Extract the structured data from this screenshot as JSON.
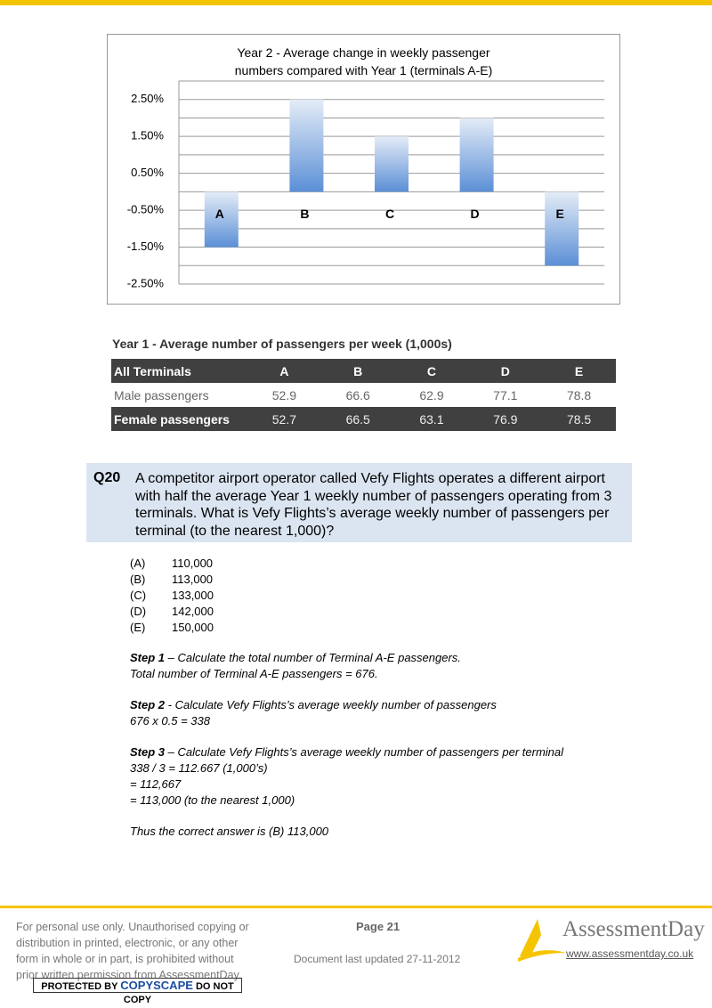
{
  "chart_data": {
    "type": "bar",
    "title": "Year 2 - Average change in weekly passenger numbers compared with Year 1 (terminals A-E)",
    "categories": [
      "A",
      "B",
      "C",
      "D",
      "E"
    ],
    "values": [
      -1.5,
      2.5,
      1.5,
      2.0,
      -2.0
    ],
    "color": "#5b8fd6",
    "ylim": [
      -2.5,
      3.0
    ],
    "yticks": [
      {
        "value": -2.5,
        "label": "-2.50%"
      },
      {
        "value": -1.5,
        "label": "-1.50%"
      },
      {
        "value": -0.5,
        "label": "-0.50%"
      },
      {
        "value": 0.5,
        "label": "0.50%"
      },
      {
        "value": 1.5,
        "label": "1.50%"
      },
      {
        "value": 2.5,
        "label": "2.50%"
      }
    ],
    "minor_yticks": [
      -2,
      -1,
      0,
      1,
      2,
      3
    ],
    "grid": true
  },
  "table": {
    "title": "Year 1 - Average number of passengers per week (1,000s)",
    "header": [
      "All Terminals",
      "A",
      "B",
      "C",
      "D",
      "E"
    ],
    "rows": [
      [
        "Male passengers",
        "52.9",
        "66.6",
        "62.9",
        "77.1",
        "78.8"
      ],
      [
        "Female passengers",
        "52.7",
        "66.5",
        "63.1",
        "76.9",
        "78.5"
      ]
    ]
  },
  "question": {
    "number": "Q20",
    "text": "A competitor airport operator called Vefy Flights operates a different airport with half the average Year 1 weekly number of passengers operating from 3 terminals. What is Vefy Flights’s average weekly number of passengers per terminal (to the nearest 1,000)?",
    "options": [
      {
        "label": "(A)",
        "text": "110,000"
      },
      {
        "label": "(B)",
        "text": "113,000"
      },
      {
        "label": "(C)",
        "text": "133,000"
      },
      {
        "label": "(D)",
        "text": "142,000"
      },
      {
        "label": "(E)",
        "text": "150,000"
      }
    ]
  },
  "steps": [
    {
      "label": "Step 1",
      "text": "– Calculate the total number of Terminal A-E passengers.",
      "lines": [
        "Total number of Terminal A-E passengers = 676."
      ]
    },
    {
      "label": "Step 2",
      "text": "- Calculate Vefy Flights’s average weekly number of passengers",
      "lines": [
        "676 x 0.5 = 338"
      ]
    },
    {
      "label": "Step 3",
      "text": "– Calculate Vefy Flights’s average weekly number of passengers per terminal",
      "lines": [
        "338 / 3 = 112.667 (1,000’s)",
        "= 112,667",
        "= 113,000 (to the nearest 1,000)"
      ]
    }
  ],
  "conclusion": "Thus the correct answer is (B) 113,000",
  "footer": {
    "notice": [
      "For personal use only. Unauthorised copying or",
      "distribution in printed, electronic, or any other",
      "form in whole or in part, is prohibited without",
      "prior written permission from AssessmentDay."
    ],
    "badge": {
      "prefix": "PROTECTED BY",
      "brand": "COPYSCAPE",
      "suffix": "DO NOT COPY"
    },
    "page": "Page 21",
    "updated": "Document last updated 27-11-2012",
    "logo": "AssessmentDay",
    "url": "www.assessmentday.co.uk"
  }
}
